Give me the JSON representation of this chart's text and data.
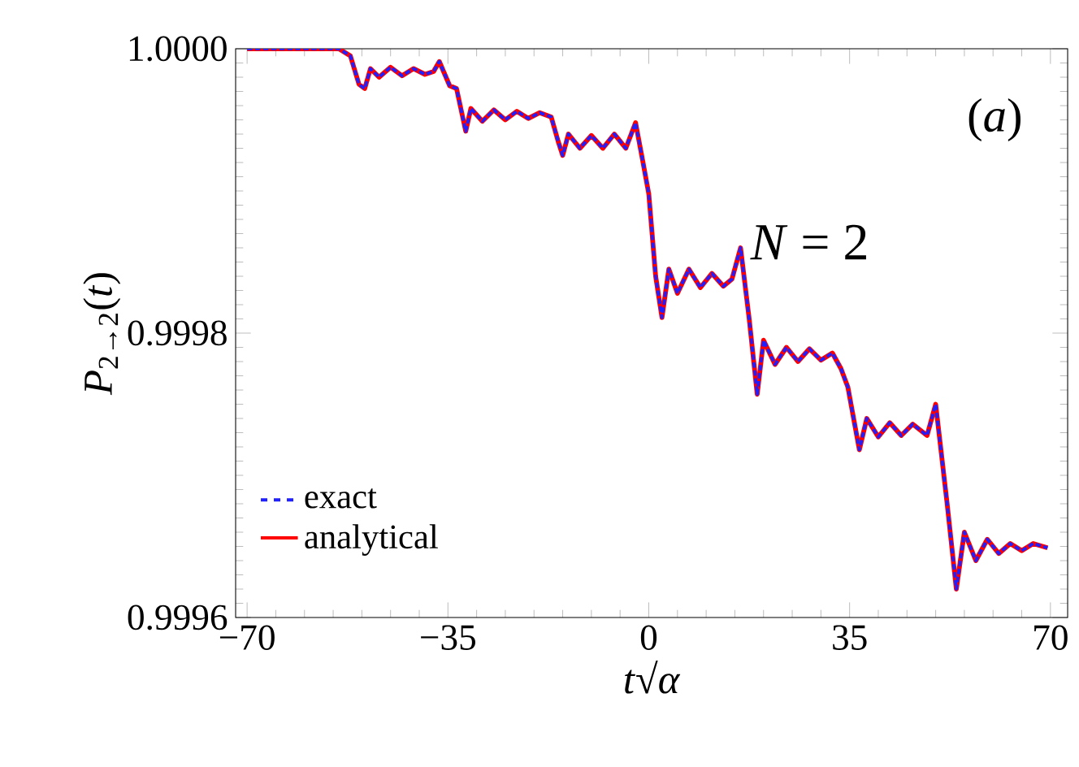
{
  "chart_data": {
    "type": "line",
    "xlabel": "*t*√*α*",
    "ylabel": "*P*$_{2→2}$(*t*)",
    "annotations": [
      "(*a*)",
      "*N* = 2"
    ],
    "x": [
      -70,
      -54,
      -52,
      -50.5,
      -49.5,
      -48.5,
      -47,
      -45,
      -43,
      -41,
      -39,
      -37.5,
      -36.5,
      -34.7,
      -33.5,
      -31.9,
      -31,
      -29,
      -27,
      -25,
      -23,
      -21,
      -19,
      -17,
      -15.8,
      -15,
      -14,
      -12,
      -10,
      -8,
      -6,
      -4,
      -2.3,
      -1,
      0,
      1.2,
      2.3,
      3.5,
      5,
      7,
      9,
      11,
      13,
      14.5,
      16,
      17.5,
      18.9,
      20,
      22,
      24,
      26,
      28,
      30,
      32,
      33.5,
      34.7,
      36.7,
      38,
      40,
      42,
      44,
      46,
      48.5,
      50,
      52,
      53.6,
      55,
      57,
      59,
      61,
      63,
      65,
      67,
      69.5
    ],
    "series": [
      {
        "name": "analytical",
        "color": "#ff0000",
        "line_style": "solid",
        "values": [
          1.0,
          1.0,
          0.999995,
          0.999975,
          0.999972,
          0.999986,
          0.99998,
          0.999987,
          0.999981,
          0.999986,
          0.999982,
          0.999984,
          0.999991,
          0.999974,
          0.999972,
          0.999942,
          0.999958,
          0.999949,
          0.999957,
          0.99995,
          0.999956,
          0.999951,
          0.999955,
          0.999952,
          0.999935,
          0.999925,
          0.99994,
          0.99993,
          0.999939,
          0.99993,
          0.99994,
          0.99993,
          0.999948,
          0.99992,
          0.999898,
          0.99984,
          0.999811,
          0.999845,
          0.999828,
          0.999845,
          0.999832,
          0.999842,
          0.999833,
          0.999838,
          0.99986,
          0.99981,
          0.999757,
          0.999795,
          0.999778,
          0.99979,
          0.99978,
          0.999789,
          0.999781,
          0.999786,
          0.999775,
          0.999762,
          0.999718,
          0.99974,
          0.999727,
          0.999737,
          0.999728,
          0.999736,
          0.999728,
          0.99975,
          0.99968,
          0.99962,
          0.99966,
          0.99964,
          0.999655,
          0.999645,
          0.999652,
          0.999647,
          0.999652,
          0.999649
        ]
      },
      {
        "name": "exact",
        "color": "#2020ff",
        "line_style": "dashed",
        "values": [
          1.0,
          1.0,
          0.999995,
          0.999975,
          0.999972,
          0.999986,
          0.99998,
          0.999987,
          0.999981,
          0.999986,
          0.999982,
          0.999984,
          0.999991,
          0.999974,
          0.999972,
          0.999942,
          0.999958,
          0.999949,
          0.999957,
          0.99995,
          0.999956,
          0.999951,
          0.999955,
          0.999952,
          0.999935,
          0.999925,
          0.99994,
          0.99993,
          0.999939,
          0.99993,
          0.99994,
          0.99993,
          0.999948,
          0.99992,
          0.999898,
          0.99984,
          0.999811,
          0.999845,
          0.999828,
          0.999845,
          0.999832,
          0.999842,
          0.999833,
          0.999838,
          0.99986,
          0.99981,
          0.999757,
          0.999795,
          0.999778,
          0.99979,
          0.99978,
          0.999789,
          0.999781,
          0.999786,
          0.999775,
          0.999762,
          0.999718,
          0.99974,
          0.999727,
          0.999737,
          0.999728,
          0.999736,
          0.999728,
          0.99975,
          0.99968,
          0.99962,
          0.99966,
          0.99964,
          0.999655,
          0.999645,
          0.999652,
          0.999647,
          0.999652,
          0.999649
        ]
      }
    ],
    "xlim": [
      -72,
      73
    ],
    "ylim": [
      0.9996,
      1.0
    ],
    "xticks": [
      {
        "value": -70,
        "label": "−70"
      },
      {
        "value": -35,
        "label": "−35"
      },
      0,
      35,
      70
    ],
    "yticks": [
      {
        "value": 0.9996,
        "label": "0.9996"
      },
      {
        "value": 0.9998,
        "label": "0.9998"
      },
      {
        "value": 1.0,
        "label": "1.0000"
      }
    ],
    "grid": false,
    "legend": "bottom left",
    "marker": "none"
  }
}
